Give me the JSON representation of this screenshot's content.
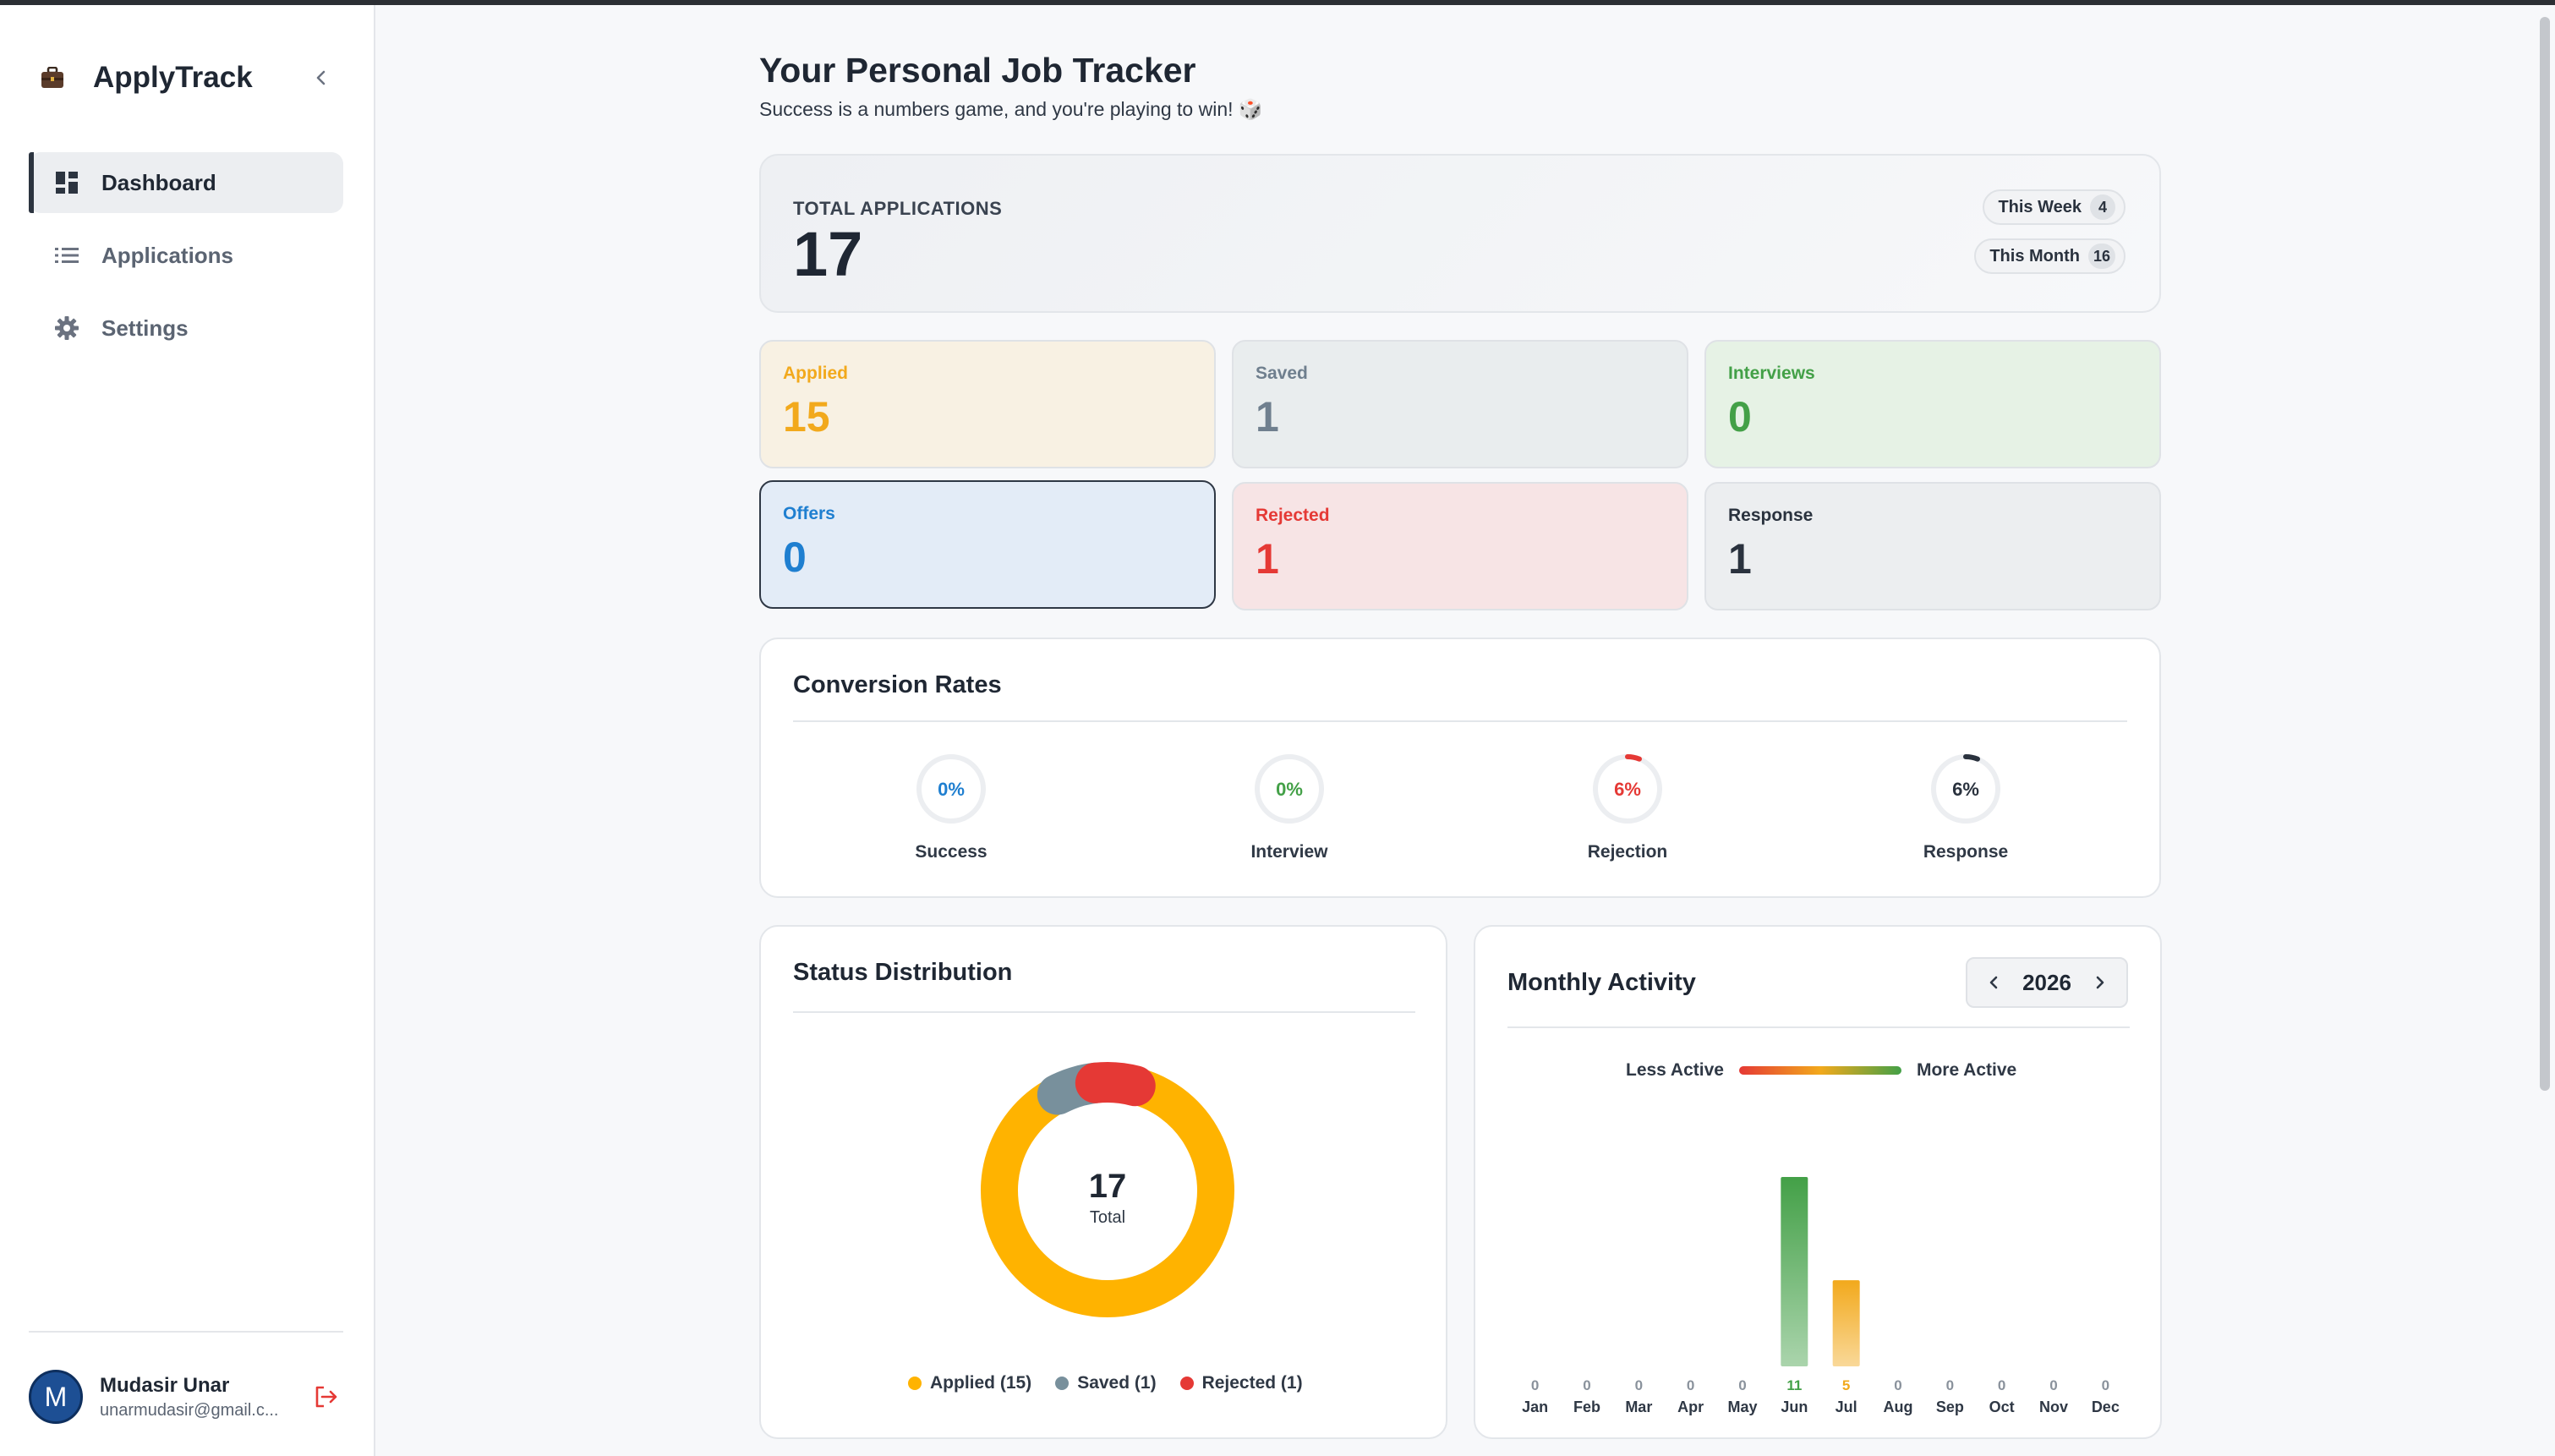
{
  "app": {
    "title": "ApplyTrack"
  },
  "sidebar": {
    "items": [
      {
        "label": "Dashboard",
        "icon": "dashboard-icon",
        "active": true
      },
      {
        "label": "Applications",
        "icon": "list-icon",
        "active": false
      },
      {
        "label": "Settings",
        "icon": "gear-icon",
        "active": false
      }
    ]
  },
  "user": {
    "initial": "M",
    "name": "Mudasir Unar",
    "email": "unarmudasir@gmail.c..."
  },
  "header": {
    "title": "Your Personal Job Tracker",
    "subtitle": "Success is a numbers game, and you're playing to win! 🎲"
  },
  "total": {
    "label": "TOTAL APPLICATIONS",
    "value": "17",
    "this_week_label": "This Week",
    "this_week_value": "4",
    "this_month_label": "This Month",
    "this_month_value": "16"
  },
  "stats": [
    {
      "label": "Applied",
      "value": "15",
      "color": "#f2a91c",
      "bg": "#f8f1e3"
    },
    {
      "label": "Saved",
      "value": "1",
      "color": "#6f7f8e",
      "bg": "#e9edee"
    },
    {
      "label": "Interviews",
      "value": "0",
      "color": "#43a047",
      "bg": "#e6f2e5"
    },
    {
      "label": "Offers",
      "value": "0",
      "color": "#1f7fd0",
      "bg": "#e3ecf7"
    },
    {
      "label": "Rejected",
      "value": "1",
      "color": "#e53935",
      "bg": "#f7e4e5"
    },
    {
      "label": "Response",
      "value": "1",
      "color": "#2a323e",
      "bg": "#eceef0"
    }
  ],
  "conversion": {
    "title": "Conversion Rates",
    "rates": [
      {
        "label": "Success",
        "text": "0%",
        "value": 0,
        "color": "#1f7fd0"
      },
      {
        "label": "Interview",
        "text": "0%",
        "value": 0,
        "color": "#43a047"
      },
      {
        "label": "Rejection",
        "text": "6%",
        "value": 6,
        "color": "#e53935"
      },
      {
        "label": "Response",
        "text": "6%",
        "value": 6,
        "color": "#2a323e"
      }
    ]
  },
  "status": {
    "title": "Status Distribution",
    "total_value": "17",
    "total_label": "Total",
    "legend": [
      {
        "label": "Applied (15)",
        "color": "#ffb300"
      },
      {
        "label": "Saved (1)",
        "color": "#78909c"
      },
      {
        "label": "Rejected (1)",
        "color": "#e53935"
      }
    ]
  },
  "monthly": {
    "title": "Monthly Activity",
    "year": "2026",
    "less_label": "Less Active",
    "more_label": "More Active"
  },
  "chart_data": [
    {
      "type": "pie",
      "title": "Status Distribution",
      "categories": [
        "Applied",
        "Saved",
        "Rejected"
      ],
      "values": [
        15,
        1,
        1
      ],
      "colors": [
        "#ffb300",
        "#78909c",
        "#e53935"
      ],
      "center_text": "17",
      "legend": "bottom"
    },
    {
      "type": "bar",
      "title": "Monthly Activity",
      "categories": [
        "Jan",
        "Feb",
        "Mar",
        "Apr",
        "May",
        "Jun",
        "Jul",
        "Aug",
        "Sep",
        "Oct",
        "Nov",
        "Dec"
      ],
      "values": [
        0,
        0,
        0,
        0,
        0,
        11,
        5,
        0,
        0,
        0,
        0,
        0
      ],
      "value_colors": {
        "high": "#43a047",
        "mid": "#f2a91c",
        "zero": "#8a929c"
      },
      "grid": false,
      "legend": "top"
    }
  ]
}
